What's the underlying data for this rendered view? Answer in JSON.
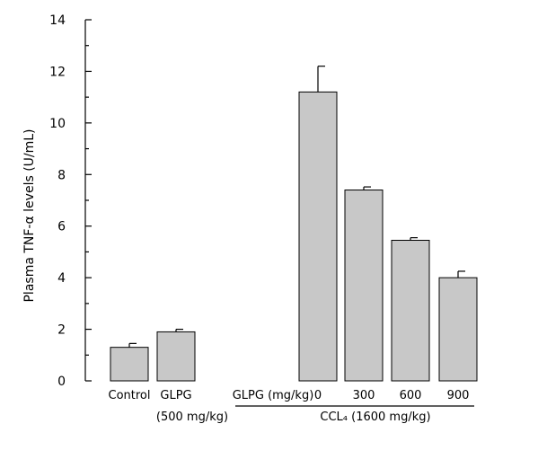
{
  "chart_data": {
    "type": "bar",
    "title": "",
    "xlabel": "",
    "ylabel": "Plasma TNF-α levels (U/mL)",
    "ylim": [
      0,
      14
    ],
    "yticks": [
      "0",
      "2",
      "4",
      "6",
      "8",
      "10",
      "12",
      "14"
    ],
    "grid": false,
    "categories": [
      "Control",
      "GLPG",
      "0",
      "300",
      "600",
      "900"
    ],
    "values": [
      1.3,
      1.9,
      11.2,
      7.4,
      5.45,
      4.0
    ],
    "errors": [
      0.15,
      0.1,
      1.0,
      0.12,
      0.1,
      0.25
    ],
    "annotations": {
      "glpg_dose": "(500 mg/kg)",
      "dose_axis_label": "GLPG (mg/kg)",
      "group_label": "CCL₄ (1600 mg/kg)"
    }
  }
}
